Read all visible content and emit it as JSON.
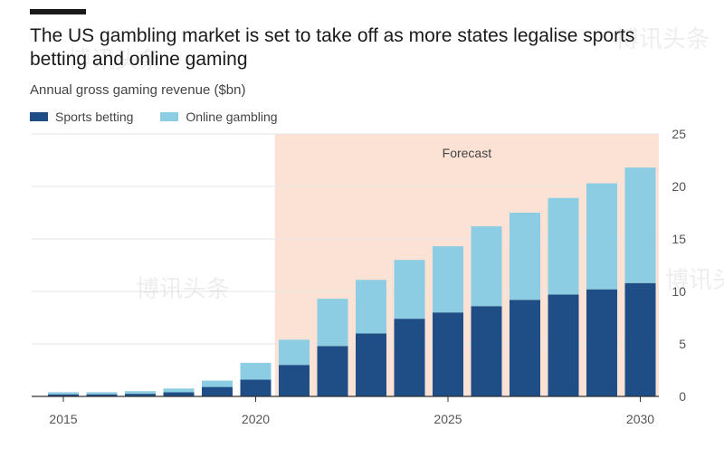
{
  "header": {
    "title": "The US gambling market is set to take off as more states legalise sports betting and online gaming",
    "subtitle": "Annual gross gaming revenue ($bn)"
  },
  "watermark": {
    "text": "博讯头条"
  },
  "colors": {
    "sports": "#1f4e86",
    "online": "#8ccde3",
    "forecast_bg": "#fbe2d5",
    "grid": "#e6e6e6",
    "axis": "#555555"
  },
  "chart_data": {
    "type": "bar",
    "stacked": true,
    "x": [
      2015,
      2016,
      2017,
      2018,
      2019,
      2020,
      2021,
      2022,
      2023,
      2024,
      2025,
      2026,
      2027,
      2028,
      2029,
      2030
    ],
    "series": [
      {
        "name": "Sports betting",
        "values": [
          0.2,
          0.2,
          0.25,
          0.4,
          0.9,
          1.6,
          3.0,
          4.8,
          6.0,
          7.4,
          8.0,
          8.6,
          9.2,
          9.7,
          10.2,
          10.8
        ]
      },
      {
        "name": "Online gambling",
        "values": [
          0.2,
          0.2,
          0.25,
          0.35,
          0.6,
          1.6,
          2.4,
          4.5,
          5.1,
          5.6,
          6.3,
          7.6,
          8.3,
          9.2,
          10.1,
          11.0
        ]
      }
    ],
    "ylim": [
      0,
      25
    ],
    "yticks": [
      0,
      5,
      10,
      15,
      20,
      25
    ],
    "xticks": [
      "2015",
      "2020",
      "2025",
      "2030"
    ],
    "forecast_label": "Forecast",
    "forecast_start": 2021,
    "legend_position": "top-left",
    "grid": true,
    "y_axis_side": "right"
  }
}
